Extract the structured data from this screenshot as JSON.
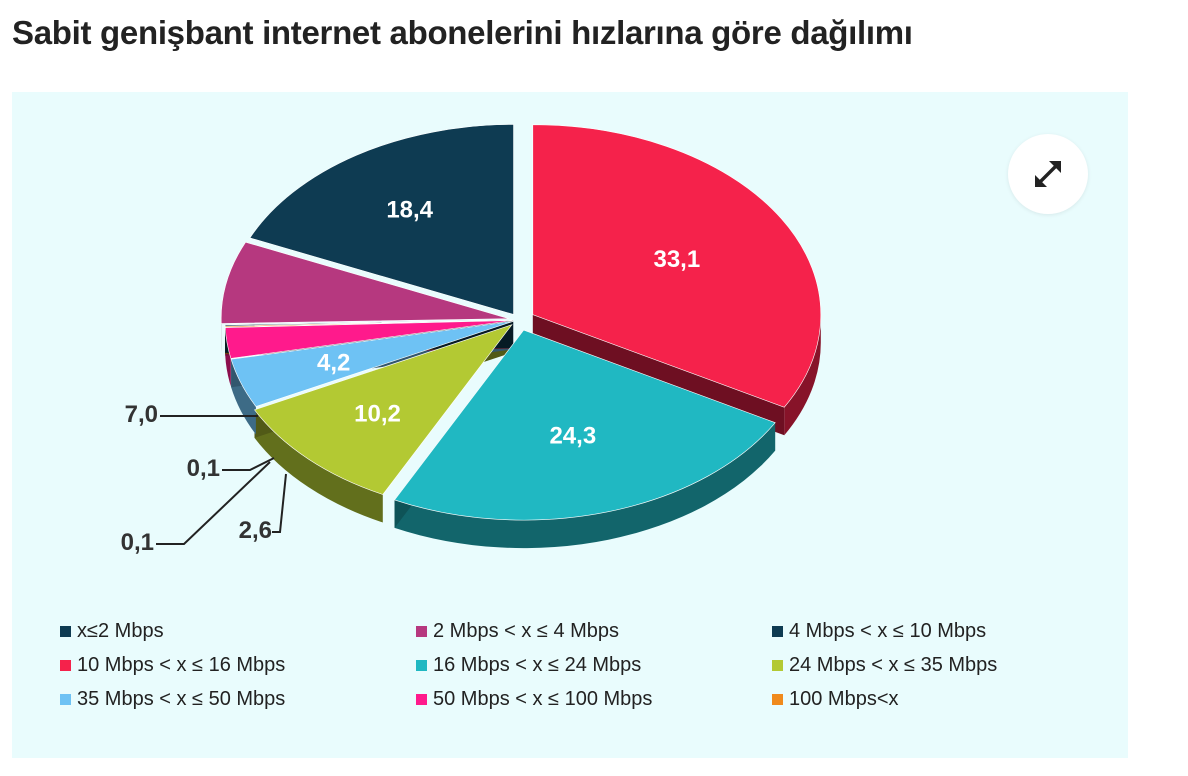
{
  "page": {
    "title": "Sabit genişbant internet abonelerini hızlarına göre dağılımı"
  },
  "expand_button": {
    "icon": "expand-arrows-icon"
  },
  "chart_data": {
    "type": "pie",
    "title": "",
    "categories": [
      "x≤2 Mbps",
      "2 Mbps < x ≤ 4 Mbps",
      "4 Mbps < x ≤ 10 Mbps",
      "10 Mbps < x ≤ 16 Mbps",
      "16 Mbps < x ≤ 24 Mbps",
      "24 Mbps < x ≤ 35 Mbps",
      "35 Mbps < x ≤ 50 Mbps",
      "50 Mbps < x ≤ 100 Mbps",
      "100 Mbps<x"
    ],
    "colors": [
      "#0e3b52",
      "#b6387f",
      "#0e3b52",
      "#f5224b",
      "#20b8c2",
      "#b3c933",
      "#6ec2f4",
      "#ff1a8c",
      "#f08a1c"
    ],
    "slices": [
      {
        "label": "10 Mbps < x ≤ 16 Mbps",
        "value": 33.1,
        "display": "33,1",
        "color": "#f5224b"
      },
      {
        "label": "16 Mbps < x ≤ 24 Mbps",
        "value": 24.3,
        "display": "24,3",
        "color": "#20b8c2"
      },
      {
        "label": "24 Mbps < x ≤ 35 Mbps",
        "value": 10.2,
        "display": "10,2",
        "color": "#b3c933"
      },
      {
        "label": "35 Mbps < x ≤ 50 Mbps",
        "value": 4.2,
        "display": "4,2",
        "color": "#6ec2f4"
      },
      {
        "label": "50 Mbps < x ≤ 100 Mbps",
        "value": 2.6,
        "display": "2,6",
        "color": "#ff1a8c"
      },
      {
        "label": "100 Mbps<x",
        "value": 0.1,
        "display": "0,1",
        "color": "#f08a1c"
      },
      {
        "label": "x≤2 Mbps",
        "value": 0.1,
        "display": "0,1",
        "color": "#0e3b52"
      },
      {
        "label": "2 Mbps < x ≤ 4 Mbps",
        "value": 7.0,
        "display": "7,0",
        "color": "#b6387f"
      },
      {
        "label": "4 Mbps < x ≤ 10 Mbps",
        "value": 18.4,
        "display": "18,4",
        "color": "#0e3b52"
      }
    ],
    "legend_position": "bottom"
  }
}
